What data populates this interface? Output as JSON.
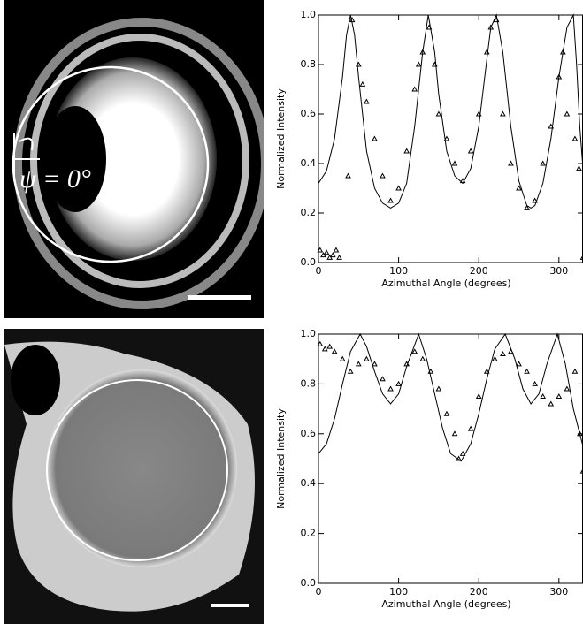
{
  "images": [
    {
      "label": "ψ = 0°"
    },
    {}
  ],
  "chart_data": [
    {
      "type": "scatter",
      "xlabel": "Azimuthal Angle (degrees)",
      "ylabel": "Normalized Intensity",
      "xlim": [
        0,
        330
      ],
      "ylim": [
        0,
        1
      ],
      "xticks": [
        0,
        100,
        200,
        300
      ],
      "yticks": [
        {
          "value": 0,
          "label": "0.0"
        },
        {
          "value": 0.2,
          "label": "0.2"
        },
        {
          "value": 0.4,
          "label": "0.4"
        },
        {
          "value": 0.6,
          "label": "0.6"
        },
        {
          "value": 0.8,
          "label": "0.8"
        },
        {
          "value": 1,
          "label": "1.0"
        }
      ],
      "series": [
        {
          "mode": "markers",
          "color": "#000000",
          "x": [
            2,
            6,
            10,
            14,
            18,
            22,
            26,
            37,
            42,
            50,
            55,
            60,
            70,
            80,
            90,
            100,
            110,
            120,
            125,
            130,
            138,
            145,
            150,
            160,
            170,
            180,
            190,
            200,
            210,
            215,
            222,
            230,
            240,
            250,
            260,
            270,
            280,
            290,
            300,
            305,
            310,
            320,
            325,
            330
          ],
          "values": [
            0.05,
            0.03,
            0.04,
            0.02,
            0.03,
            0.05,
            0.02,
            0.35,
            0.98,
            0.8,
            0.72,
            0.65,
            0.5,
            0.35,
            0.25,
            0.3,
            0.45,
            0.7,
            0.8,
            0.85,
            0.95,
            0.8,
            0.6,
            0.5,
            0.4,
            0.33,
            0.45,
            0.6,
            0.85,
            0.95,
            0.98,
            0.6,
            0.4,
            0.3,
            0.22,
            0.25,
            0.4,
            0.55,
            0.75,
            0.85,
            0.6,
            0.5,
            0.38,
            0.02
          ]
        },
        {
          "mode": "line",
          "color": "#000000",
          "x": [
            0,
            10,
            20,
            30,
            35,
            40,
            45,
            50,
            60,
            70,
            80,
            90,
            100,
            110,
            120,
            130,
            137,
            145,
            150,
            160,
            170,
            180,
            190,
            200,
            210,
            215,
            222,
            230,
            240,
            250,
            260,
            265,
            270,
            280,
            290,
            300,
            310,
            318,
            322,
            326,
            330
          ],
          "values": [
            0.32,
            0.37,
            0.5,
            0.75,
            0.92,
            1,
            0.92,
            0.75,
            0.45,
            0.3,
            0.24,
            0.22,
            0.24,
            0.32,
            0.55,
            0.85,
            1,
            0.85,
            0.68,
            0.45,
            0.35,
            0.32,
            0.38,
            0.55,
            0.82,
            0.95,
            1,
            0.85,
            0.55,
            0.33,
            0.23,
            0.22,
            0.23,
            0.32,
            0.5,
            0.75,
            0.95,
            1,
            0.8,
            0.55,
            0.38
          ]
        }
      ]
    },
    {
      "type": "scatter",
      "xlabel": "Azimuthal Angle (degrees)",
      "ylabel": "Normalized Intensity",
      "xlim": [
        0,
        330
      ],
      "ylim": [
        0,
        1
      ],
      "xticks": [
        0,
        100,
        200,
        300
      ],
      "yticks": [
        {
          "value": 0,
          "label": "0.0"
        },
        {
          "value": 0.2,
          "label": "0.2"
        },
        {
          "value": 0.4,
          "label": "0.4"
        },
        {
          "value": 0.6,
          "label": "0.6"
        },
        {
          "value": 0.8,
          "label": "0.8"
        },
        {
          "value": 1,
          "label": "1.0"
        }
      ],
      "series": [
        {
          "mode": "markers",
          "color": "#000000",
          "x": [
            2,
            8,
            14,
            20,
            30,
            40,
            50,
            60,
            70,
            80,
            90,
            100,
            110,
            120,
            130,
            140,
            150,
            160,
            170,
            175,
            180,
            190,
            200,
            210,
            220,
            230,
            240,
            250,
            260,
            270,
            280,
            290,
            300,
            310,
            320,
            326,
            330
          ],
          "values": [
            0.96,
            0.94,
            0.95,
            0.93,
            0.9,
            0.85,
            0.88,
            0.9,
            0.88,
            0.82,
            0.78,
            0.8,
            0.88,
            0.93,
            0.9,
            0.85,
            0.78,
            0.68,
            0.6,
            0.5,
            0.52,
            0.62,
            0.75,
            0.85,
            0.9,
            0.92,
            0.93,
            0.88,
            0.85,
            0.8,
            0.75,
            0.72,
            0.75,
            0.78,
            0.85,
            0.6,
            0.45
          ]
        },
        {
          "mode": "line",
          "color": "#000000",
          "x": [
            0,
            10,
            20,
            30,
            40,
            52,
            60,
            70,
            80,
            90,
            100,
            110,
            125,
            135,
            145,
            155,
            165,
            178,
            190,
            200,
            210,
            220,
            233,
            245,
            255,
            265,
            275,
            285,
            298,
            308,
            318,
            330
          ],
          "values": [
            0.52,
            0.56,
            0.66,
            0.8,
            0.93,
            1,
            0.95,
            0.85,
            0.76,
            0.72,
            0.76,
            0.87,
            1,
            0.9,
            0.76,
            0.62,
            0.52,
            0.49,
            0.56,
            0.68,
            0.82,
            0.94,
            1,
            0.9,
            0.78,
            0.72,
            0.76,
            0.88,
            1,
            0.88,
            0.7,
            0.55
          ]
        }
      ]
    }
  ]
}
